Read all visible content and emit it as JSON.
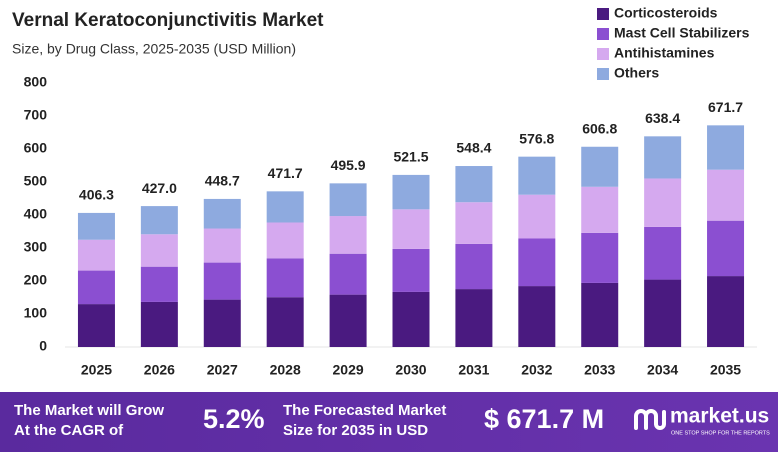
{
  "chart_data": {
    "type": "stacked-bar",
    "title": "Vernal Keratoconjunctivitis Market",
    "subtitle": "Size, by Drug Class, 2025-2035 (USD Million)",
    "categories": [
      "2025",
      "2026",
      "2027",
      "2028",
      "2029",
      "2030",
      "2031",
      "2032",
      "2033",
      "2034",
      "2035"
    ],
    "series": [
      {
        "name": "Corticosteroids",
        "color": "#4a1a80",
        "values": [
          130.0,
          136.6,
          143.6,
          150.9,
          158.7,
          166.9,
          175.5,
          184.6,
          194.2,
          204.3,
          214.9
        ]
      },
      {
        "name": "Mast Cell Stabilizers",
        "color": "#8b4fd1",
        "values": [
          101.6,
          106.8,
          112.2,
          117.9,
          124.0,
          130.4,
          137.1,
          144.2,
          151.7,
          159.6,
          167.9
        ]
      },
      {
        "name": "Antihistamines",
        "color": "#d5a9ef",
        "values": [
          93.4,
          98.2,
          103.2,
          108.5,
          114.1,
          119.9,
          126.1,
          132.7,
          139.6,
          146.8,
          154.5
        ]
      },
      {
        "name": "Others",
        "color": "#8eaadf",
        "values": [
          81.3,
          85.4,
          89.7,
          94.4,
          99.1,
          104.3,
          109.7,
          115.3,
          121.3,
          127.7,
          134.4
        ]
      }
    ],
    "totals": [
      406.3,
      427.0,
      448.7,
      471.7,
      495.9,
      521.5,
      548.4,
      576.8,
      606.8,
      638.4,
      671.7
    ],
    "total_labels": [
      "406.3",
      "427.0",
      "448.7",
      "471.7",
      "495.9",
      "521.5",
      "548.4",
      "576.8",
      "606.8",
      "638.4",
      "671.7"
    ],
    "ylim": [
      0,
      800
    ],
    "yticks": [
      0,
      100,
      200,
      300,
      400,
      500,
      600,
      700,
      800
    ],
    "grid": false
  },
  "footer": {
    "cagr_text": [
      "The Market will Grow",
      "At the CAGR of"
    ],
    "cagr_value": "5.2%",
    "forecast_text": [
      "The Forecasted Market",
      "Size for 2035 in USD"
    ],
    "forecast_value": "$ 671.7 M",
    "brand": "market.us",
    "tagline": "ONE STOP SHOP FOR THE REPORTS"
  }
}
